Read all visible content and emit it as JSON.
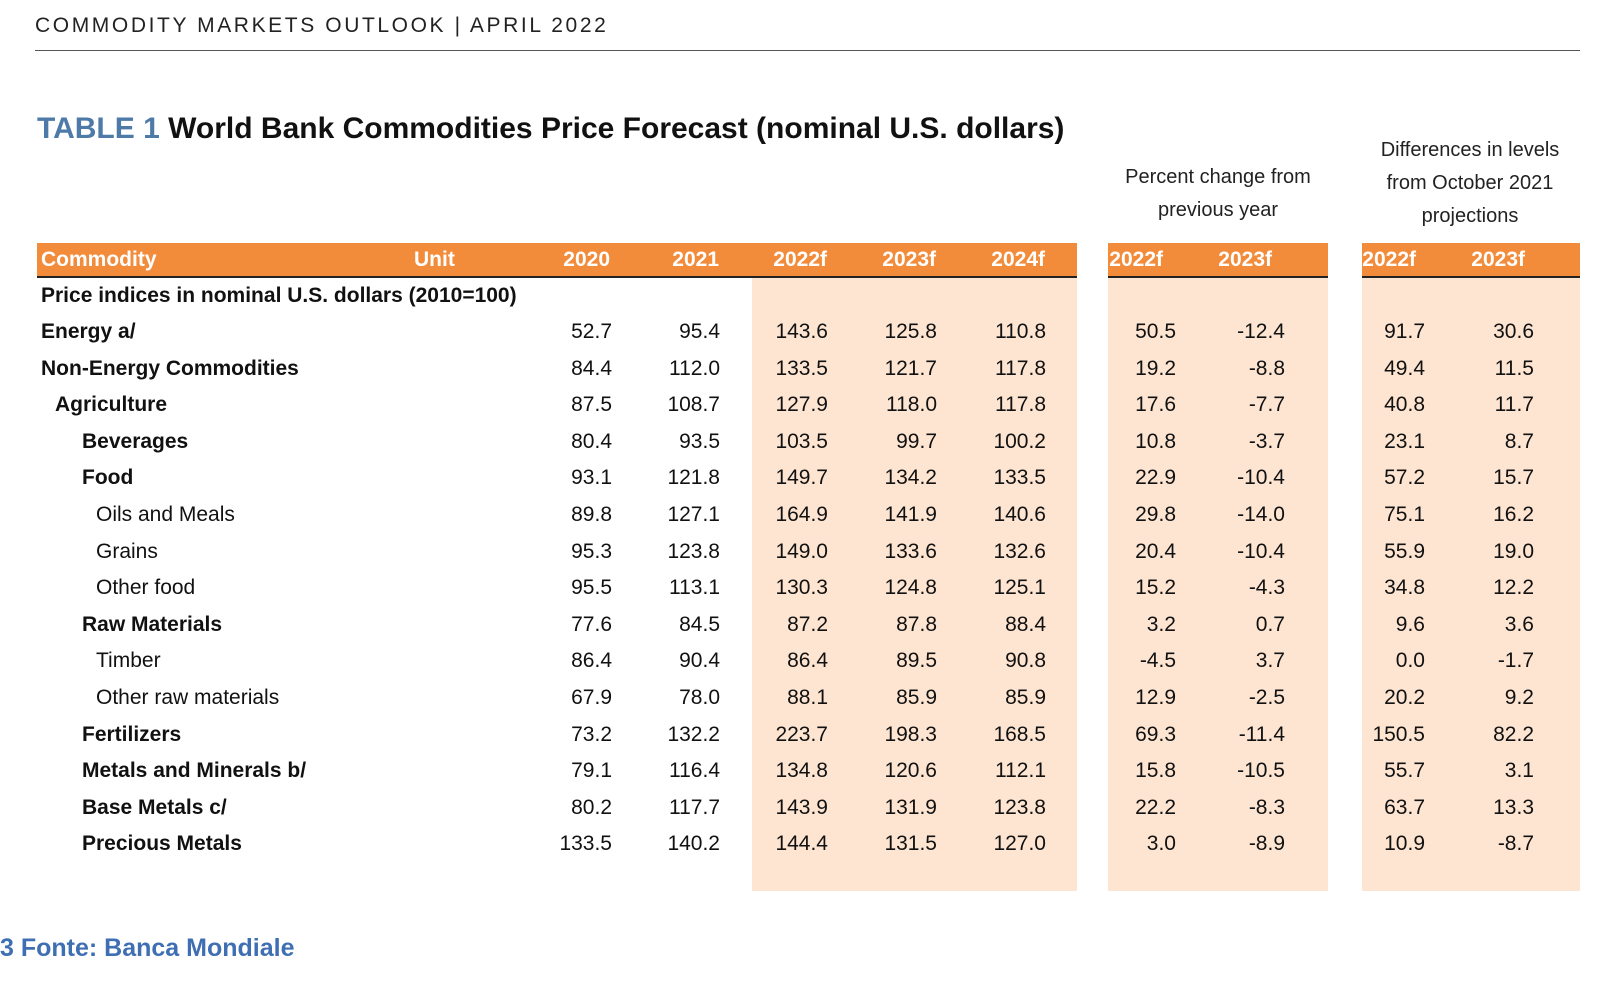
{
  "header": {
    "text": "COMMODITY MARKETS OUTLOOK | APRIL 2022"
  },
  "title": {
    "number": "TABLE 1",
    "text": " World Bank Commodities Price Forecast (nominal U.S. dollars)"
  },
  "groups": {
    "percent_change": [
      "Percent change from",
      "previous year"
    ],
    "differences": [
      "Differences in levels",
      "from October 2021",
      "projections"
    ]
  },
  "columns": {
    "commodity": "Commodity",
    "unit": "Unit",
    "years": [
      "2020",
      "2021",
      "2022f",
      "2023f",
      "2024f"
    ],
    "pct": [
      "2022f",
      "2023f"
    ],
    "diff": [
      "2022f",
      "2023f"
    ]
  },
  "section_label": "Price indices in nominal U.S. dollars (2010=100)",
  "rows": [
    {
      "label": "Energy a/",
      "values": [
        "52.7",
        "95.4",
        "143.6",
        "125.8",
        "110.8",
        "50.5",
        "-12.4",
        "91.7",
        "30.6"
      ]
    },
    {
      "label": "Non-Energy Commodities",
      "values": [
        "84.4",
        "112.0",
        "133.5",
        "121.7",
        "117.8",
        "19.2",
        "-8.8",
        "49.4",
        "11.5"
      ]
    },
    {
      "label": "Agriculture",
      "values": [
        "87.5",
        "108.7",
        "127.9",
        "118.0",
        "117.8",
        "17.6",
        "-7.7",
        "40.8",
        "11.7"
      ]
    },
    {
      "label": "Beverages",
      "values": [
        "80.4",
        "93.5",
        "103.5",
        "99.7",
        "100.2",
        "10.8",
        "-3.7",
        "23.1",
        "8.7"
      ]
    },
    {
      "label": "Food",
      "values": [
        "93.1",
        "121.8",
        "149.7",
        "134.2",
        "133.5",
        "22.9",
        "-10.4",
        "57.2",
        "15.7"
      ]
    },
    {
      "label": "Oils and Meals",
      "values": [
        "89.8",
        "127.1",
        "164.9",
        "141.9",
        "140.6",
        "29.8",
        "-14.0",
        "75.1",
        "16.2"
      ]
    },
    {
      "label": "Grains",
      "values": [
        "95.3",
        "123.8",
        "149.0",
        "133.6",
        "132.6",
        "20.4",
        "-10.4",
        "55.9",
        "19.0"
      ]
    },
    {
      "label": "Other food",
      "values": [
        "95.5",
        "113.1",
        "130.3",
        "124.8",
        "125.1",
        "15.2",
        "-4.3",
        "34.8",
        "12.2"
      ]
    },
    {
      "label": "Raw Materials",
      "values": [
        "77.6",
        "84.5",
        "87.2",
        "87.8",
        "88.4",
        "3.2",
        "0.7",
        "9.6",
        "3.6"
      ]
    },
    {
      "label": "Timber",
      "values": [
        "86.4",
        "90.4",
        "86.4",
        "89.5",
        "90.8",
        "-4.5",
        "3.7",
        "0.0",
        "-1.7"
      ]
    },
    {
      "label": "Other raw materials",
      "values": [
        "67.9",
        "78.0",
        "88.1",
        "85.9",
        "85.9",
        "12.9",
        "-2.5",
        "20.2",
        "9.2"
      ]
    },
    {
      "label": "Fertilizers",
      "values": [
        "73.2",
        "132.2",
        "223.7",
        "198.3",
        "168.5",
        "69.3",
        "-11.4",
        "150.5",
        "82.2"
      ]
    },
    {
      "label": "Metals and Minerals b/",
      "values": [
        "79.1",
        "116.4",
        "134.8",
        "120.6",
        "112.1",
        "15.8",
        "-10.5",
        "55.7",
        "3.1"
      ]
    },
    {
      "label": "Base Metals c/",
      "values": [
        "80.2",
        "117.7",
        "143.9",
        "131.9",
        "123.8",
        "22.2",
        "-8.3",
        "63.7",
        "13.3"
      ]
    },
    {
      "label": "Precious Metals",
      "values": [
        "133.5",
        "140.2",
        "144.4",
        "131.5",
        "127.0",
        "3.0",
        "-8.9",
        "10.9",
        "-8.7"
      ]
    }
  ],
  "footer": {
    "text": "3 Fonte: Banca Mondiale"
  }
}
